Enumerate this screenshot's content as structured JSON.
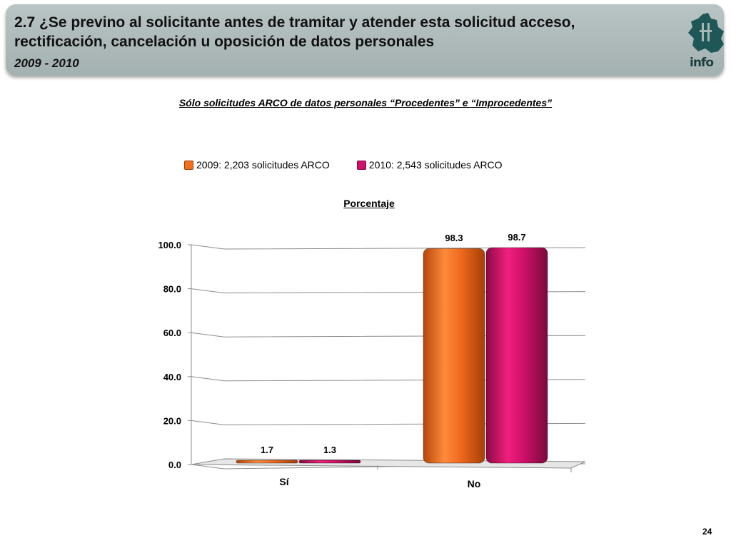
{
  "header": {
    "title": "2.7 ¿Se previno al solicitante  antes de tramitar y atender esta solicitud acceso, rectificación, cancelación u oposición de datos personales",
    "years": "2009 - 2010",
    "logo_text": "info",
    "logo_icon": "mexico-city-map-icon"
  },
  "subtitle": "Sólo solicitudes ARCO de datos personales “Procedentes” e “Improcedentes”",
  "page_number": "24",
  "chart_data": {
    "type": "bar",
    "title": "Porcentaje",
    "categories": [
      "Sí",
      "No"
    ],
    "series": [
      {
        "name": "2009: 2,203 solicitudes ARCO",
        "values": [
          1.7,
          98.3
        ],
        "labels": [
          "1.7",
          "98.3"
        ],
        "color": "#f07020"
      },
      {
        "name": "2010: 2,543 solicitudes ARCO",
        "values": [
          1.3,
          98.7
        ],
        "labels": [
          "1.3",
          "98.7"
        ],
        "color": "#d0106a"
      }
    ],
    "ylim": [
      0,
      100
    ],
    "yticks": [
      "0.0",
      "20.0",
      "40.0",
      "60.0",
      "80.0",
      "100.0"
    ],
    "grid": true,
    "legend_position": "top"
  }
}
